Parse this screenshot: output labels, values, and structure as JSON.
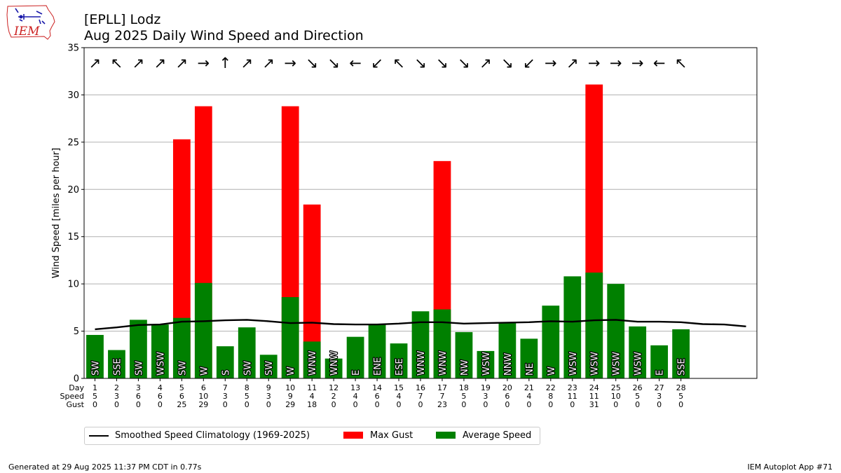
{
  "header": {
    "title_line1": "[EPLL] Lodz",
    "title_line2": "Aug 2025 Daily Wind Speed and Direction"
  },
  "logo": {
    "text": "IEM"
  },
  "footer": {
    "left": "Generated at 29 Aug 2025 11:37 PM CDT in 0.77s",
    "right": "IEM Autoplot App #71"
  },
  "legend": {
    "climatology": "Smoothed Speed Climatology (1969-2025)",
    "gust": "Max Gust",
    "average": "Average Speed"
  },
  "colors": {
    "gust": "#ff0000",
    "average": "#008000",
    "climatology": "#000000",
    "grid": "#b0b0b0"
  },
  "chart_data": {
    "type": "bar",
    "ylabel": "Wind Speed [miles per hour]",
    "ylim": [
      0,
      35
    ],
    "yticks": [
      0,
      5,
      10,
      15,
      20,
      25,
      30,
      35
    ],
    "xlim": [
      0.5,
      31.5
    ],
    "grid": "horizontal",
    "legend_position": "below",
    "row_labels": [
      "Day",
      "Speed",
      "Gust"
    ],
    "days": [
      1,
      2,
      3,
      4,
      5,
      6,
      7,
      8,
      9,
      10,
      11,
      12,
      13,
      14,
      15,
      16,
      17,
      18,
      19,
      20,
      21,
      22,
      23,
      24,
      25,
      26,
      27,
      28
    ],
    "avg_speed": [
      4.6,
      3.0,
      6.2,
      5.7,
      6.4,
      10.1,
      3.4,
      5.4,
      2.5,
      8.6,
      3.9,
      2.1,
      4.4,
      5.7,
      3.7,
      7.1,
      7.3,
      4.9,
      2.9,
      5.9,
      4.2,
      7.7,
      10.8,
      11.2,
      10.0,
      5.5,
      3.5,
      5.2
    ],
    "max_gust": [
      0,
      0,
      0,
      0,
      25.3,
      28.8,
      0,
      0,
      0,
      28.8,
      18.4,
      0,
      0,
      0,
      0,
      0,
      23.0,
      0,
      0,
      0,
      0,
      0,
      0,
      31.1,
      0,
      0,
      0,
      0
    ],
    "speed_labels": [
      "5",
      "3",
      "6",
      "6",
      "6",
      "10",
      "3",
      "5",
      "3",
      "9",
      "4",
      "2",
      "4",
      "6",
      "4",
      "7",
      "7",
      "5",
      "3",
      "6",
      "4",
      "8",
      "11",
      "11",
      "10",
      "5",
      "3",
      "5"
    ],
    "gust_labels": [
      "0",
      "0",
      "0",
      "0",
      "25",
      "29",
      "0",
      "0",
      "0",
      "29",
      "18",
      "0",
      "0",
      "0",
      "0",
      "0",
      "23",
      "0",
      "0",
      "0",
      "0",
      "0",
      "0",
      "31",
      "0",
      "0",
      "0",
      "0"
    ],
    "directions": [
      "SW",
      "SSE",
      "SW",
      "WSW",
      "SW",
      "W",
      "S",
      "SW",
      "SW",
      "W",
      "WNW",
      "WNW",
      "E",
      "ENE",
      "ESE",
      "WNW",
      "WNW",
      "NW",
      "WSW",
      "NNW",
      "NE",
      "W",
      "WSW",
      "WSW",
      "WSW",
      "WSW",
      "E",
      "SSE"
    ],
    "arrow_glyphs": [
      "↗",
      "↖",
      "↗",
      "↗",
      "↗",
      "→",
      "↑",
      "↗",
      "↗",
      "→",
      "↘",
      "↘",
      "←",
      "↙",
      "↖",
      "↘",
      "↘",
      "↘",
      "↗",
      "↘",
      "↙",
      "→",
      "↗",
      "→",
      "→",
      "→",
      "←",
      "↖"
    ],
    "climatology": {
      "name": "Smoothed Speed Climatology (1969-2025)",
      "x": [
        1,
        2,
        3,
        4,
        5,
        6,
        7,
        8,
        9,
        10,
        11,
        12,
        13,
        14,
        15,
        16,
        17,
        18,
        19,
        20,
        21,
        22,
        23,
        24,
        25,
        26,
        27,
        28,
        29,
        30,
        31
      ],
      "y": [
        5.2,
        5.4,
        5.65,
        5.7,
        6.0,
        6.05,
        6.15,
        6.2,
        6.05,
        5.85,
        5.9,
        5.75,
        5.7,
        5.7,
        5.8,
        5.95,
        5.95,
        5.8,
        5.85,
        5.9,
        5.95,
        6.05,
        6.0,
        6.15,
        6.2,
        6.0,
        6.0,
        5.95,
        5.75,
        5.7,
        5.5
      ]
    }
  }
}
